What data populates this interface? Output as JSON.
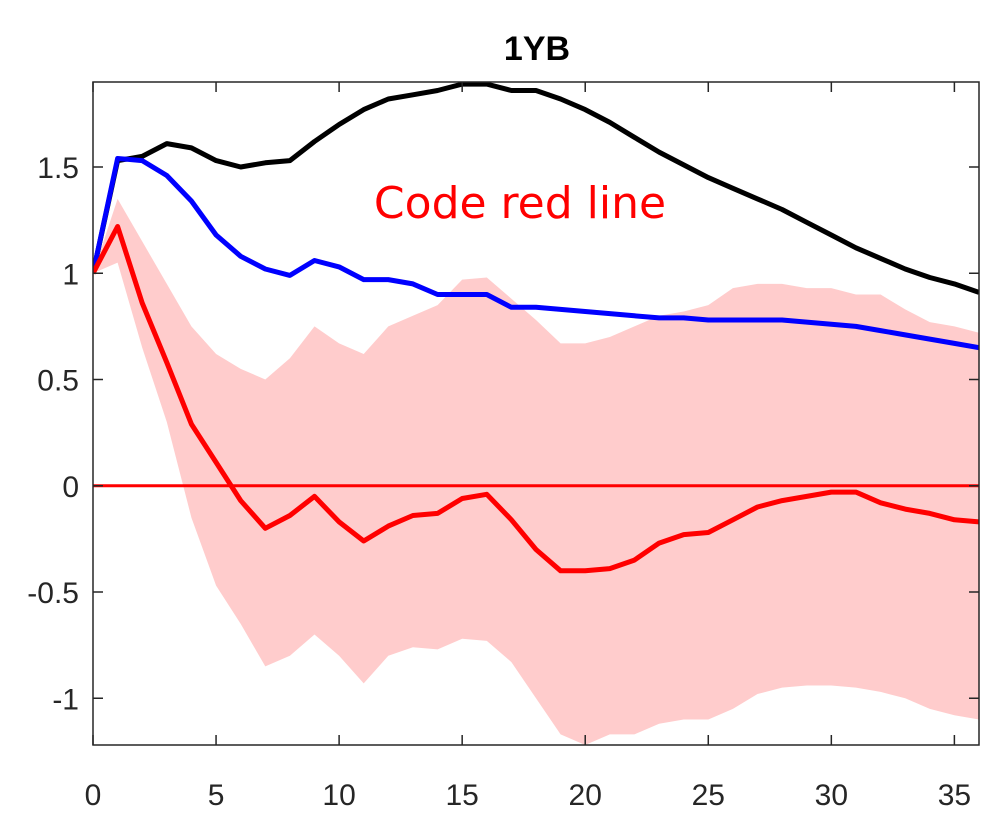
{
  "chart_data": {
    "type": "line",
    "title": "1YB",
    "annotation": "Code red line",
    "xlabel": "",
    "ylabel": "",
    "xlim": [
      0,
      36
    ],
    "ylim": [
      -1.22,
      1.9
    ],
    "xticks": [
      0,
      5,
      10,
      15,
      20,
      25,
      30,
      35
    ],
    "yticks": [
      -1,
      -0.5,
      0,
      0.5,
      1,
      1.5
    ],
    "x": [
      0,
      1,
      2,
      3,
      4,
      5,
      6,
      7,
      8,
      9,
      10,
      11,
      12,
      13,
      14,
      15,
      16,
      17,
      18,
      19,
      20,
      21,
      22,
      23,
      24,
      25,
      26,
      27,
      28,
      29,
      30,
      31,
      32,
      33,
      34,
      35,
      36
    ],
    "series": [
      {
        "color": "#000000",
        "values": [
          1.0,
          1.53,
          1.55,
          1.61,
          1.59,
          1.53,
          1.5,
          1.52,
          1.53,
          1.62,
          1.7,
          1.77,
          1.82,
          1.84,
          1.86,
          1.89,
          1.89,
          1.86,
          1.86,
          1.82,
          1.77,
          1.71,
          1.64,
          1.57,
          1.51,
          1.45,
          1.4,
          1.35,
          1.3,
          1.24,
          1.18,
          1.12,
          1.07,
          1.02,
          0.98,
          0.95,
          0.91
        ]
      },
      {
        "color": "#0000ff",
        "values": [
          1.0,
          1.54,
          1.53,
          1.46,
          1.34,
          1.18,
          1.08,
          1.02,
          0.99,
          1.06,
          1.03,
          0.97,
          0.97,
          0.95,
          0.9,
          0.9,
          0.9,
          0.84,
          0.84,
          0.83,
          0.82,
          0.81,
          0.8,
          0.79,
          0.79,
          0.78,
          0.78,
          0.78,
          0.78,
          0.77,
          0.76,
          0.75,
          0.73,
          0.71,
          0.69,
          0.67,
          0.65
        ]
      },
      {
        "color": "#ff0000",
        "values": [
          1.0,
          1.22,
          0.86,
          0.58,
          0.29,
          0.11,
          -0.07,
          -0.2,
          -0.14,
          -0.05,
          -0.17,
          -0.26,
          -0.19,
          -0.14,
          -0.13,
          -0.06,
          -0.04,
          -0.16,
          -0.3,
          -0.4,
          -0.4,
          -0.39,
          -0.35,
          -0.27,
          -0.23,
          -0.22,
          -0.16,
          -0.1,
          -0.07,
          -0.05,
          -0.03,
          -0.03,
          -0.08,
          -0.11,
          -0.13,
          -0.16,
          -0.17
        ]
      }
    ],
    "band": {
      "color": "#ffcccc",
      "upper": [
        1.0,
        1.35,
        1.15,
        0.95,
        0.75,
        0.62,
        0.55,
        0.5,
        0.6,
        0.75,
        0.67,
        0.62,
        0.75,
        0.8,
        0.85,
        0.97,
        0.98,
        0.88,
        0.78,
        0.67,
        0.67,
        0.7,
        0.75,
        0.8,
        0.82,
        0.85,
        0.93,
        0.95,
        0.95,
        0.93,
        0.93,
        0.9,
        0.9,
        0.83,
        0.77,
        0.75,
        0.72
      ],
      "lower": [
        1.0,
        1.05,
        0.65,
        0.3,
        -0.15,
        -0.47,
        -0.65,
        -0.85,
        -0.8,
        -0.7,
        -0.8,
        -0.93,
        -0.8,
        -0.76,
        -0.77,
        -0.72,
        -0.73,
        -0.83,
        -1.0,
        -1.17,
        -1.22,
        -1.17,
        -1.17,
        -1.12,
        -1.1,
        -1.1,
        -1.05,
        -0.98,
        -0.95,
        -0.94,
        -0.94,
        -0.95,
        -0.97,
        -1.0,
        -1.05,
        -1.08,
        -1.1
      ]
    },
    "reference_line": {
      "y": 0,
      "color": "#ff0000"
    },
    "grid": false,
    "legend": "none"
  }
}
